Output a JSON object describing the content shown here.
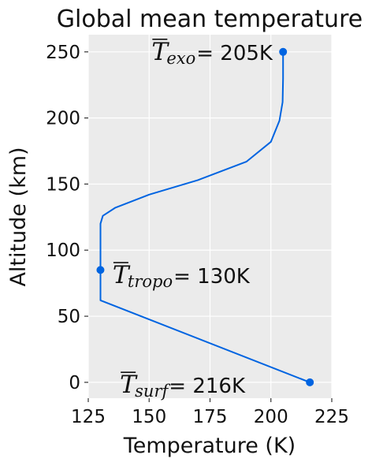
{
  "chart_data": {
    "type": "line",
    "title": "Global mean temperature",
    "xlabel": "Temperature (K)",
    "ylabel": "Altitude (km)",
    "xlim": [
      125,
      225
    ],
    "ylim": [
      -12,
      263
    ],
    "xticks": [
      125,
      150,
      175,
      200,
      225
    ],
    "yticks": [
      0,
      50,
      100,
      150,
      200,
      250
    ],
    "grid": true,
    "colors": {
      "line": "#0064e1",
      "background": "#ebebeb"
    },
    "series": [
      {
        "x": [
          216,
          130,
          130,
          130,
          131,
          136,
          150,
          170,
          190,
          200,
          203.5,
          204.8,
          205,
          205
        ],
        "y": [
          0,
          62,
          85,
          120,
          126,
          132,
          142,
          153,
          167,
          182,
          198,
          212,
          230,
          250
        ]
      }
    ],
    "points": [
      {
        "x": 216,
        "y": 0
      },
      {
        "x": 130,
        "y": 85
      },
      {
        "x": 205,
        "y": 250
      }
    ],
    "annotations": [
      {
        "symbol": "T",
        "subscript": "exo",
        "text": " = 205K",
        "x": 151,
        "y": 250
      },
      {
        "symbol": "T",
        "subscript": "tropo",
        "text": " = 130K",
        "x": 135,
        "y": 81
      },
      {
        "symbol": "T",
        "subscript": "surf",
        "text": " = 216K",
        "x": 138,
        "y": -2
      }
    ]
  }
}
